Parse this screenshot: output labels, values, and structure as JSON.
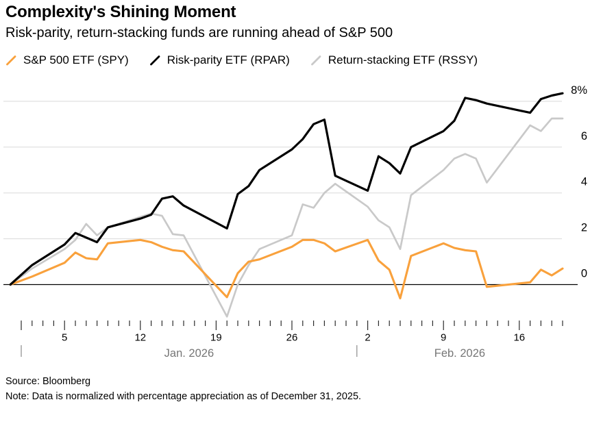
{
  "chart_data": {
    "type": "line",
    "title": "Complexity's Shining Moment",
    "subtitle": "Risk-parity, return-stacking funds are running ahead of S&P 500",
    "ylabel": "",
    "xlabel": "",
    "ylim": [
      -2,
      8.7
    ],
    "grid": "horizontal",
    "legend_position": "top-left",
    "x": {
      "dates": [
        "Dec 31",
        "Jan 2",
        "Jan 5",
        "Jan 6",
        "Jan 7",
        "Jan 8",
        "Jan 9",
        "Jan 12",
        "Jan 13",
        "Jan 14",
        "Jan 15",
        "Jan 16",
        "Jan 20",
        "Jan 21",
        "Jan 22",
        "Jan 23",
        "Jan 26",
        "Jan 27",
        "Jan 28",
        "Jan 29",
        "Jan 30",
        "Feb 2",
        "Feb 3",
        "Feb 4",
        "Feb 5",
        "Feb 6",
        "Feb 9",
        "Feb 10",
        "Feb 11",
        "Feb 12",
        "Feb 13",
        "Feb 17",
        "Feb 18",
        "Feb 19",
        "Feb 20"
      ],
      "day_offsets": [
        -1,
        1,
        4,
        5,
        6,
        7,
        8,
        11,
        12,
        13,
        14,
        15,
        19,
        20,
        21,
        22,
        25,
        26,
        27,
        28,
        29,
        32,
        33,
        34,
        35,
        36,
        39,
        40,
        41,
        42,
        43,
        47,
        48,
        49,
        50
      ]
    },
    "series": [
      {
        "id": "spy",
        "label": "S&P 500 ETF (SPY)",
        "color": "#F9A13C",
        "stroke_width": 3.1,
        "values": [
          0,
          0.35,
          0.95,
          1.4,
          1.15,
          1.1,
          1.8,
          1.95,
          1.85,
          1.65,
          1.5,
          1.45,
          -0.55,
          0.5,
          1.0,
          1.1,
          1.65,
          1.95,
          1.95,
          1.8,
          1.45,
          1.95,
          1.05,
          0.65,
          -0.6,
          1.25,
          1.8,
          1.6,
          1.5,
          1.45,
          -0.1,
          0.1,
          0.65,
          0.4,
          0.7
        ]
      },
      {
        "id": "rpar",
        "label": "Risk-parity ETF (RPAR)",
        "color": "#000000",
        "stroke_width": 3.2,
        "values": [
          0,
          0.85,
          1.75,
          2.25,
          2.05,
          1.85,
          2.5,
          2.88,
          3.05,
          3.75,
          3.85,
          3.45,
          2.45,
          3.95,
          4.3,
          5.0,
          5.9,
          6.35,
          7.0,
          7.2,
          4.75,
          4.1,
          5.6,
          5.3,
          4.85,
          6.0,
          6.7,
          7.15,
          8.15,
          8.05,
          7.9,
          7.5,
          8.1,
          8.25,
          8.35
        ]
      },
      {
        "id": "rssy",
        "label": "Return-stacking ETF (RSSY)",
        "color": "#C9C9C9",
        "stroke_width": 2.7,
        "values": [
          0,
          0.7,
          1.55,
          1.95,
          2.65,
          2.15,
          2.5,
          2.95,
          3.1,
          3.0,
          2.2,
          2.15,
          -1.4,
          0.0,
          0.85,
          1.55,
          2.15,
          3.5,
          3.35,
          4.0,
          4.4,
          3.4,
          2.8,
          2.5,
          1.55,
          3.9,
          5.0,
          5.5,
          5.7,
          5.5,
          4.45,
          6.95,
          6.7,
          7.25,
          7.25
        ]
      }
    ],
    "draw_order": [
      "rssy",
      "spy",
      "rpar"
    ],
    "y_axis": {
      "side": "right",
      "gridline_values": [
        2,
        4,
        6,
        8
      ],
      "ticks": [
        {
          "value": 0,
          "label": "0"
        },
        {
          "value": 2,
          "label": "2"
        },
        {
          "value": 4,
          "label": "4"
        },
        {
          "value": 6,
          "label": "6"
        },
        {
          "value": 8,
          "label": "8%"
        }
      ]
    },
    "x_axis": {
      "tick_unit": "calendar-day",
      "first_tick_day_offset": 0,
      "last_tick_day_offset": 50,
      "major_tick_day_offsets": [
        0,
        4,
        11,
        18,
        25,
        32,
        39,
        46
      ],
      "week_labels": [
        {
          "label": "5",
          "day_offset": 4
        },
        {
          "label": "12",
          "day_offset": 11
        },
        {
          "label": "19",
          "day_offset": 18
        },
        {
          "label": "26",
          "day_offset": 25
        },
        {
          "label": "2",
          "day_offset": 32
        },
        {
          "label": "9",
          "day_offset": 39
        },
        {
          "label": "16",
          "day_offset": 46
        }
      ],
      "month_labels": [
        {
          "label": "Jan. 2026",
          "separator_day_offset": 0,
          "center_day_offset": 15.5
        },
        {
          "label": "Feb. 2026",
          "separator_day_offset": 31,
          "center_day_offset": 40.5
        }
      ]
    },
    "colors": {
      "gridline": "#D9D9D9",
      "zero_line": "#000000",
      "tick": "#2a2a2a",
      "axis_label": "#000000",
      "month_label": "#767676",
      "month_separator": "#8a8a8a"
    }
  },
  "footer": {
    "source": "Source: Bloomberg",
    "note": "Note: Data is normalized with percentage appreciation as of December 31, 2025."
  }
}
